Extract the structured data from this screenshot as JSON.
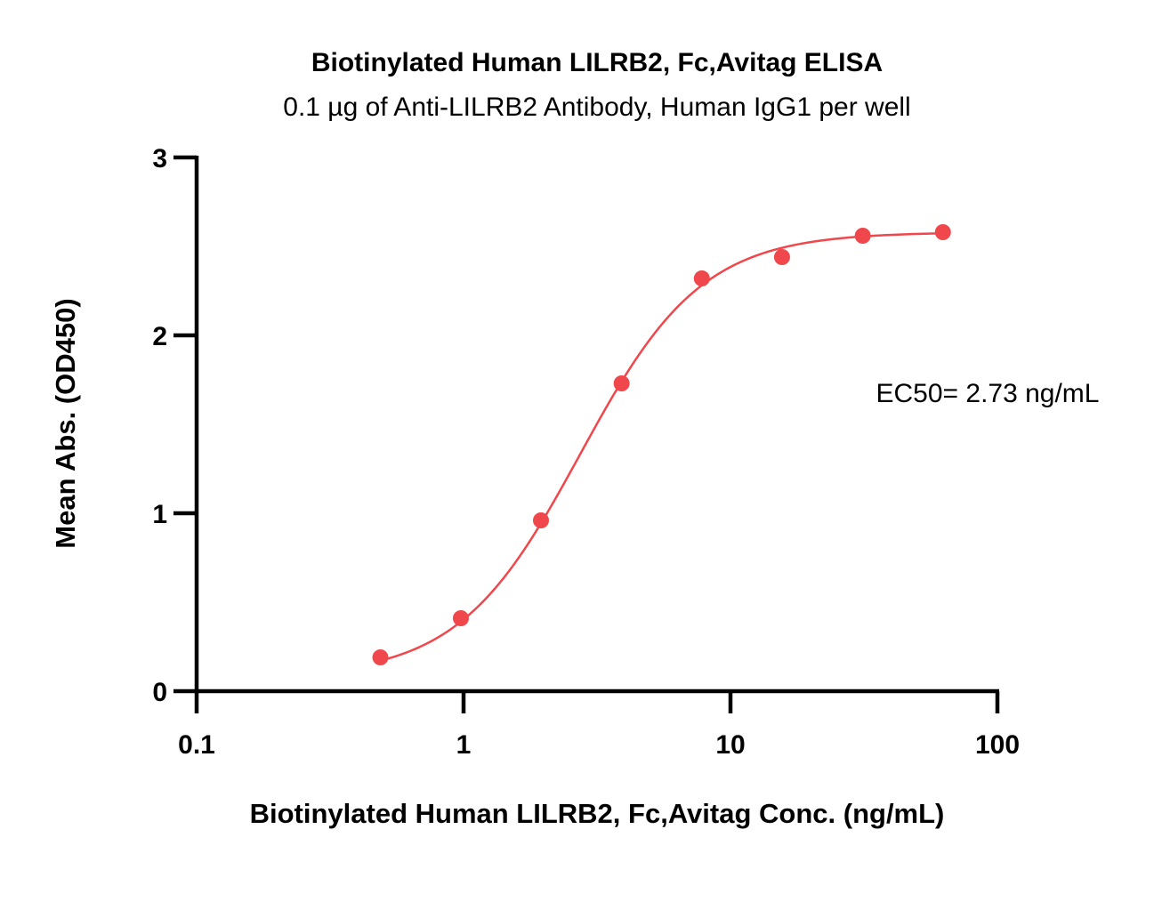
{
  "chart_data": {
    "type": "scatter",
    "title": "Biotinylated Human LILRB2, Fc,Avitag ELISA",
    "subtitle": "0.1 µg of Anti-LILRB2 Antibody, Human IgG1 per well",
    "xlabel": "Biotinylated Human LILRB2, Fc,Avitag Conc. (ng/mL)",
    "ylabel": "Mean Abs. (OD450)",
    "x_scale": "log",
    "xlim": [
      0.1,
      100
    ],
    "ylim": [
      0,
      3
    ],
    "x_ticks": [
      0.1,
      1,
      10,
      100
    ],
    "x_tick_labels": [
      "0.1",
      "1",
      "10",
      "100"
    ],
    "y_ticks": [
      0,
      1,
      2,
      3
    ],
    "y_tick_labels": [
      "0",
      "1",
      "2",
      "3"
    ],
    "grid": false,
    "series": [
      {
        "color": "#f0474c",
        "x": [
          0.488,
          0.977,
          1.95,
          3.91,
          7.81,
          15.6,
          31.3,
          62.5
        ],
        "y": [
          0.19,
          0.41,
          0.96,
          1.73,
          2.32,
          2.44,
          2.56,
          2.58
        ],
        "fit": {
          "model": "4PL",
          "bottom": 0.08,
          "top": 2.58,
          "ec50": 2.73,
          "hill": 1.9
        }
      }
    ],
    "annotations": [
      {
        "text": "EC50= 2.73 ng/mL",
        "placement": "right, mid-height"
      }
    ]
  }
}
